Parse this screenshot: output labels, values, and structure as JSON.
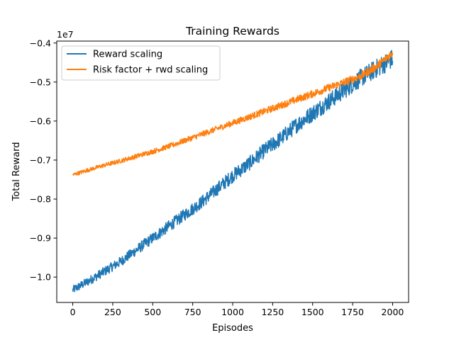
{
  "chart_data": {
    "type": "line",
    "title": "Training Rewards",
    "xlabel": "Episodes",
    "ylabel": "Total Reward",
    "y_offset_label": "1e7",
    "xlim": [
      -100,
      2100
    ],
    "ylim": [
      -1.065,
      -0.395
    ],
    "x_ticks": [
      0,
      250,
      500,
      750,
      1000,
      1250,
      1500,
      1750,
      2000
    ],
    "x_tick_labels": [
      "0",
      "250",
      "500",
      "750",
      "1000",
      "1250",
      "1500",
      "1750",
      "2000"
    ],
    "y_ticks": [
      -1.0,
      -0.9,
      -0.8,
      -0.7,
      -0.6,
      -0.5,
      -0.4
    ],
    "y_tick_labels": [
      "−1.0",
      "−0.9",
      "−0.8",
      "−0.7",
      "−0.6",
      "−0.5",
      "−0.4"
    ],
    "grid": false,
    "legend_position": "upper-left",
    "x": [
      0,
      100,
      200,
      300,
      400,
      500,
      600,
      700,
      800,
      900,
      1000,
      1100,
      1200,
      1300,
      1400,
      1500,
      1600,
      1700,
      1800,
      1900,
      2000
    ],
    "series": [
      {
        "name": "Reward scaling",
        "color": "#1f77b4",
        "values": [
          -1.033,
          -1.01,
          -0.985,
          -0.96,
          -0.93,
          -0.9,
          -0.87,
          -0.84,
          -0.81,
          -0.775,
          -0.74,
          -0.71,
          -0.675,
          -0.645,
          -0.61,
          -0.58,
          -0.55,
          -0.52,
          -0.49,
          -0.465,
          -0.44
        ],
        "noise": 0.018
      },
      {
        "name": "Risk factor + rwd scaling",
        "color": "#ff7f0e",
        "values": [
          -0.738,
          -0.725,
          -0.713,
          -0.702,
          -0.69,
          -0.678,
          -0.665,
          -0.65,
          -0.635,
          -0.62,
          -0.605,
          -0.59,
          -0.575,
          -0.56,
          -0.545,
          -0.53,
          -0.515,
          -0.5,
          -0.485,
          -0.46,
          -0.425
        ],
        "noise": 0.008
      }
    ]
  }
}
